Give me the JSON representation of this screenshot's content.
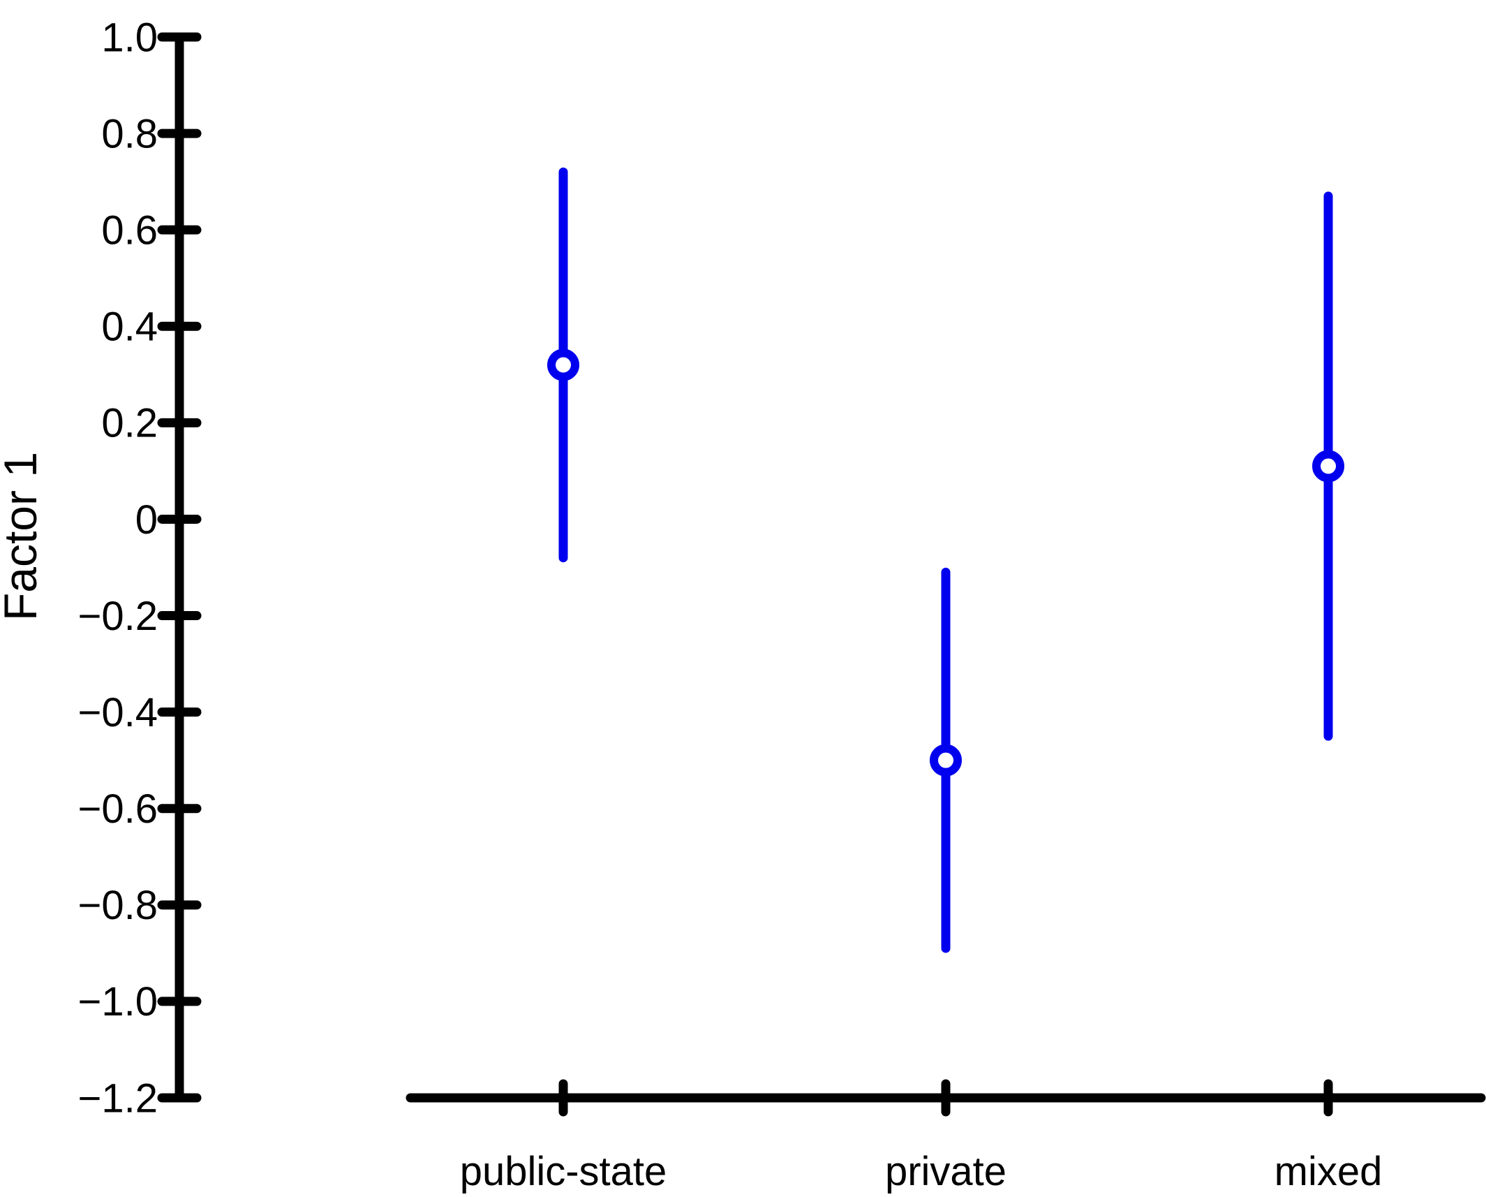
{
  "chart_data": {
    "type": "scatter",
    "subtype": "point-estimates-with-error-bars",
    "title": "",
    "xlabel": "",
    "ylabel": "Factor 1",
    "categories": [
      "public-state",
      "private",
      "mixed"
    ],
    "series": [
      {
        "name": "Factor 1 estimate",
        "values": [
          0.32,
          -0.5,
          0.11
        ],
        "ci_upper": [
          0.72,
          -0.11,
          0.67
        ],
        "ci_lower": [
          -0.08,
          -0.89,
          -0.45
        ]
      }
    ],
    "ylim": [
      -1.2,
      1.0
    ],
    "ytick_step": 0.2,
    "ytick_labels": [
      "1.0",
      "0.8",
      "0.6",
      "0.4",
      "0.2",
      "0",
      "−0.2",
      "−0.4",
      "−0.6",
      "−0.8",
      "−1.0",
      "−1.2"
    ],
    "grid": false,
    "legend": false,
    "marker": "open-circle",
    "colors": {
      "series": "#0000ee",
      "axis": "#000000",
      "marker_fill": "#ffffff",
      "background": "#ffffff"
    }
  }
}
